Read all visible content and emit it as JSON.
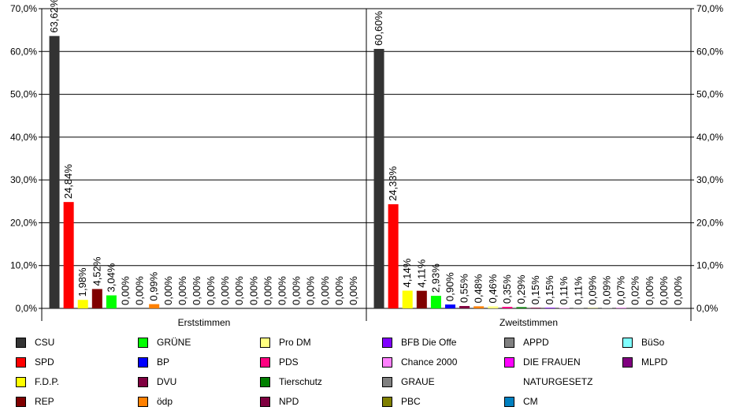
{
  "chart_data": {
    "type": "bar",
    "categories": [
      "Erststimmen",
      "Zweitstimmen"
    ],
    "ylim": [
      0,
      70
    ],
    "yticks": [
      "0,0%",
      "10,0%",
      "20,0%",
      "30,0%",
      "40,0%",
      "50,0%",
      "60,0%",
      "70,0%"
    ],
    "grid": true,
    "legend_position": "bottom",
    "series": [
      {
        "name": "CSU",
        "color": "#333333",
        "values": [
          63.62,
          60.6
        ],
        "labels": [
          "63,62%",
          "60,60%"
        ]
      },
      {
        "name": "SPD",
        "color": "#ff0000",
        "values": [
          24.84,
          24.33
        ],
        "labels": [
          "24,84%",
          "24,33%"
        ]
      },
      {
        "name": "F.D.P.",
        "color": "#ffff00",
        "values": [
          1.98,
          4.14
        ],
        "labels": [
          "1,98%",
          "4,14%"
        ]
      },
      {
        "name": "REP",
        "color": "#800000",
        "values": [
          4.52,
          4.11
        ],
        "labels": [
          "4,52%",
          "4,11%"
        ]
      },
      {
        "name": "GRÜNE",
        "color": "#00ff00",
        "values": [
          3.04,
          2.93
        ],
        "labels": [
          "3,04%",
          "2,93%"
        ]
      },
      {
        "name": "BP",
        "color": "#0000ff",
        "values": [
          0.0,
          0.9
        ],
        "labels": [
          "0,00%",
          "0,90%"
        ]
      },
      {
        "name": "DVU",
        "color": "#800040",
        "values": [
          0.0,
          0.55
        ],
        "labels": [
          "0,00%",
          "0,55%"
        ]
      },
      {
        "name": "ödp",
        "color": "#ff8000",
        "values": [
          0.99,
          0.48
        ],
        "labels": [
          "0,99%",
          "0,48%"
        ]
      },
      {
        "name": "Pro DM",
        "color": "#ffff80",
        "values": [
          0.0,
          0.46
        ],
        "labels": [
          "0,00%",
          "0,46%"
        ]
      },
      {
        "name": "PDS",
        "color": "#ff0080",
        "values": [
          0.0,
          0.35
        ],
        "labels": [
          "0,00%",
          "0,35%"
        ]
      },
      {
        "name": "Tierschutz",
        "color": "#008000",
        "values": [
          0.0,
          0.29
        ],
        "labels": [
          "0,00%",
          "0,29%"
        ]
      },
      {
        "name": "NPD",
        "color": "#800040",
        "values": [
          0.0,
          0.15
        ],
        "labels": [
          "0,00%",
          "0,15%"
        ]
      },
      {
        "name": "BFB Die Offe",
        "color": "#8000ff",
        "values": [
          0.0,
          0.15
        ],
        "labels": [
          "0,00%",
          "0,15%"
        ]
      },
      {
        "name": "Chance 2000",
        "color": "#ff80ff",
        "values": [
          0.0,
          0.11
        ],
        "labels": [
          "0,00%",
          "0,11%"
        ]
      },
      {
        "name": "GRAUE",
        "color": "#808080",
        "values": [
          0.0,
          0.11
        ],
        "labels": [
          "0,00%",
          "0,11%"
        ]
      },
      {
        "name": "PBC",
        "color": "#808000",
        "values": [
          0.0,
          0.09
        ],
        "labels": [
          "0,00%",
          "0,09%"
        ]
      },
      {
        "name": "APPD",
        "color": "#808080",
        "values": [
          0.0,
          0.09
        ],
        "labels": [
          "0,00%",
          "0,09%"
        ]
      },
      {
        "name": "DIE FRAUEN",
        "color": "#ff00ff",
        "values": [
          0.0,
          0.07
        ],
        "labels": [
          "0,00%",
          "0,07%"
        ]
      },
      {
        "name": "NATURGESETZ",
        "color": "#ffffff",
        "values": [
          0.0,
          0.02
        ],
        "labels": [
          "0,00%",
          "0,02%"
        ]
      },
      {
        "name": "CM",
        "color": "#0080c0",
        "values": [
          0.0,
          0.0
        ],
        "labels": [
          "0,00%",
          "0,00%"
        ]
      },
      {
        "name": "BüSo",
        "color": "#80ffff",
        "values": [
          0.0,
          0.0
        ],
        "labels": [
          "0,00%",
          "0,00%"
        ]
      },
      {
        "name": "MLPD",
        "color": "#800080",
        "values": [
          0.0,
          0.0
        ],
        "labels": [
          "0,00%",
          "0,00%"
        ]
      }
    ]
  }
}
